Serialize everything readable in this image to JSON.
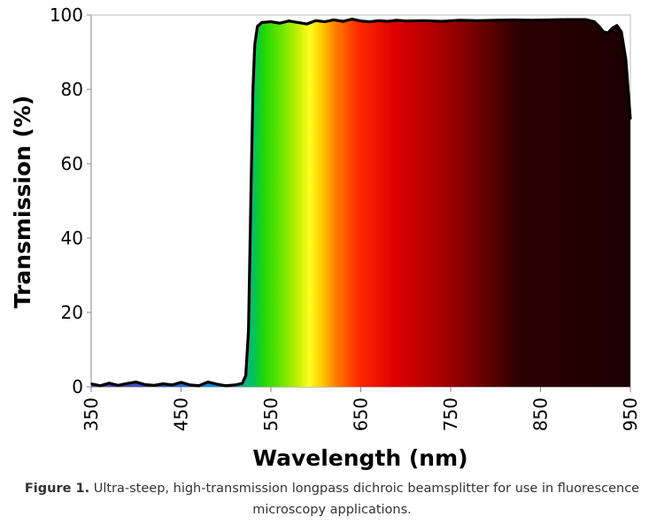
{
  "chart_data": {
    "type": "area",
    "title": "",
    "xlabel": "Wavelength (nm)",
    "ylabel": "Transmission (%)",
    "xlim": [
      350,
      950
    ],
    "ylim": [
      0,
      100
    ],
    "x_ticks": [
      "350",
      "450",
      "550",
      "650",
      "750",
      "850",
      "950"
    ],
    "y_ticks": [
      "0",
      "20",
      "40",
      "60",
      "80",
      "100"
    ],
    "grid": false,
    "fill": "visible spectrum colour gradient under the curve",
    "series": [
      {
        "x": [
          350,
          360,
          370,
          380,
          390,
          400,
          410,
          420,
          430,
          440,
          450,
          460,
          470,
          480,
          490,
          500,
          510,
          518,
          522,
          525,
          528,
          530,
          532,
          535,
          540,
          550,
          560,
          570,
          580,
          590,
          600,
          610,
          620,
          630,
          640,
          650,
          660,
          670,
          680,
          690,
          700,
          720,
          740,
          760,
          780,
          800,
          820,
          840,
          860,
          880,
          900,
          910,
          915,
          920,
          925,
          930,
          935,
          940,
          945,
          950
        ],
        "y": [
          0.8,
          0.3,
          1.0,
          0.4,
          0.9,
          1.3,
          0.6,
          0.4,
          0.8,
          0.5,
          1.2,
          0.5,
          0.3,
          1.3,
          0.7,
          0.3,
          0.5,
          0.9,
          3,
          15,
          55,
          80,
          92,
          97,
          98,
          98.2,
          97.8,
          98.4,
          98.0,
          97.6,
          98.5,
          98.2,
          98.7,
          98.3,
          98.9,
          98.4,
          98.2,
          98.5,
          98.3,
          98.6,
          98.4,
          98.5,
          98.3,
          98.6,
          98.5,
          98.6,
          98.7,
          98.6,
          98.7,
          98.8,
          98.8,
          98.2,
          97.0,
          95.5,
          95.2,
          96.5,
          97.2,
          95.5,
          88,
          72
        ]
      }
    ]
  },
  "caption": {
    "label": "Figure 1.",
    "text": " Ultra-steep, high-transmission longpass dichroic beamsplitter for use in fluorescence microscopy applications."
  },
  "colors": {
    "curve": "#000000",
    "axis": "#888888",
    "caption_text": "#333333",
    "spectrum_stops": [
      "#6a3fa0",
      "#3050d0",
      "#00a0e0",
      "#00d060",
      "#40e000",
      "#9aee00",
      "#ffff00",
      "#ffaa00",
      "#ff4000",
      "#e00000",
      "#b00000",
      "#700000",
      "#300000",
      "#1a0000"
    ]
  }
}
